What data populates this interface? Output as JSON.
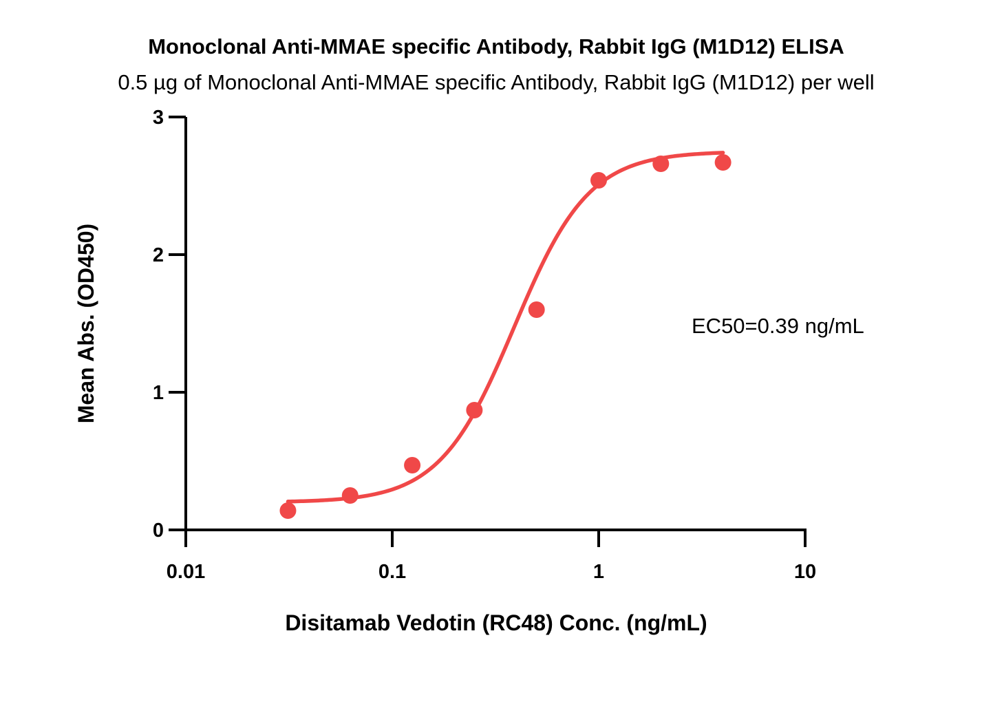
{
  "chart_data": {
    "type": "scatter",
    "title": "Monoclonal Anti-MMAE specific Antibody, Rabbit IgG (M1D12) ELISA",
    "subtitle": "0.5 µg of Monoclonal Anti-MMAE specific Antibody, Rabbit IgG (M1D12) per well",
    "xlabel": "Disitamab Vedotin (RC48) Conc. (ng/mL)",
    "ylabel": "Mean Abs. (OD450)",
    "xscale": "log",
    "xlim": [
      0.01,
      10
    ],
    "ylim": [
      0,
      3
    ],
    "xticks": [
      0.01,
      0.1,
      1,
      10
    ],
    "xtick_labels": [
      "0.01",
      "0.1",
      "1",
      "10"
    ],
    "yticks": [
      0,
      1,
      2,
      3
    ],
    "ytick_labels": [
      "0",
      "1",
      "2",
      "3"
    ],
    "grid": false,
    "series": [
      {
        "color": "#f04848",
        "x": [
          0.03125,
          0.0625,
          0.125,
          0.25,
          0.5,
          1,
          2,
          4
        ],
        "y": [
          0.14,
          0.25,
          0.47,
          0.87,
          1.6,
          2.54,
          2.66,
          2.67
        ]
      }
    ],
    "fit": {
      "type": "4PL",
      "bottom": 0.2,
      "top": 2.75,
      "ec50": 0.39,
      "hill": 2.4,
      "x_range": [
        0.03125,
        4
      ],
      "color": "#f04848"
    },
    "annotations": [
      {
        "text": "EC50=0.39 ng/mL"
      }
    ]
  }
}
